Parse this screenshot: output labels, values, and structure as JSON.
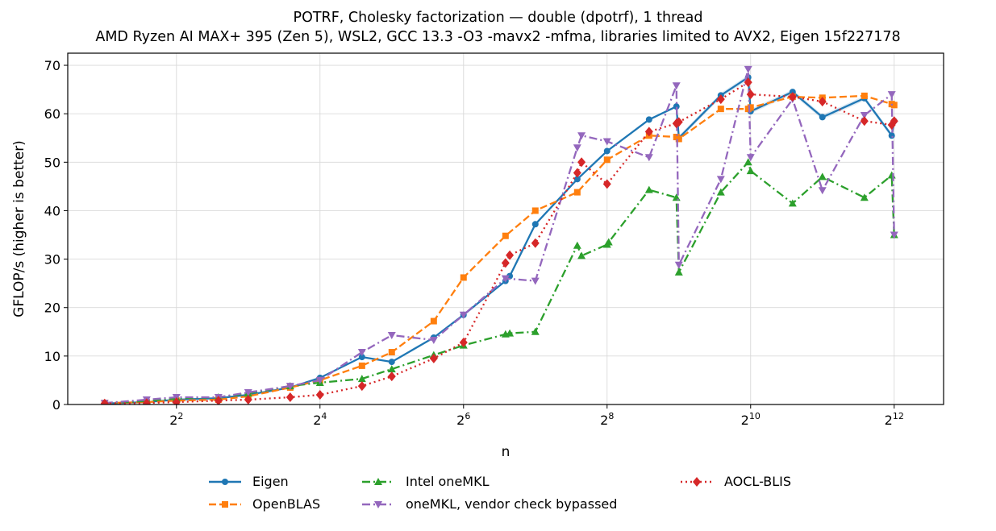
{
  "title": "POTRF, Cholesky factorization — double (dpotrf), 1 thread",
  "subtitle": "AMD Ryzen AI MAX+ 395 (Zen 5), WSL2, GCC 13.3 -O3 -mavx2 -mfma, libraries limited to AVX2, Eigen 15f227178",
  "chart_data": {
    "type": "line",
    "title": "POTRF, Cholesky factorization — double (dpotrf), 1 thread",
    "subtitle": "AMD Ryzen AI MAX+ 395 (Zen 5), WSL2, GCC 13.3 -O3 -mavx2 -mfma, libraries limited to AVX2, Eigen 15f227178",
    "xlabel": "n",
    "ylabel": "GFLOP/s (higher is better)",
    "xscale": "log2",
    "xlim": [
      1.4,
      6600
    ],
    "ylim": [
      0,
      72.5
    ],
    "x_ticks": [
      {
        "value": 4,
        "base": "2",
        "exp": "2"
      },
      {
        "value": 16,
        "base": "2",
        "exp": "4"
      },
      {
        "value": 64,
        "base": "2",
        "exp": "6"
      },
      {
        "value": 256,
        "base": "2",
        "exp": "8"
      },
      {
        "value": 1024,
        "base": "2",
        "exp": "10"
      },
      {
        "value": 4096,
        "base": "2",
        "exp": "12"
      }
    ],
    "y_ticks": [
      "0",
      "10",
      "20",
      "30",
      "40",
      "50",
      "60",
      "70"
    ],
    "grid": true,
    "legend_position": "below",
    "series": [
      {
        "name": "Eigen",
        "color": "#1f77b4",
        "style": "solid",
        "marker": "circle",
        "x": [
          2,
          3,
          4,
          6,
          8,
          12,
          16,
          24,
          32,
          48,
          64,
          96,
          100,
          128,
          192,
          256,
          384,
          500,
          512,
          768,
          1000,
          1024,
          1536,
          2048,
          3072,
          4000,
          4096
        ],
        "y": [
          0.2,
          0.5,
          1.0,
          1.3,
          2.0,
          3.5,
          5.5,
          9.8,
          8.8,
          13.8,
          18.5,
          25.5,
          26.5,
          37.2,
          46.5,
          52.3,
          58.8,
          61.5,
          55.0,
          63.8,
          67.5,
          60.5,
          64.5,
          59.3,
          63.2,
          55.5,
          58.5
        ]
      },
      {
        "name": "OpenBLAS",
        "color": "#ff7f0e",
        "style": "dashed",
        "marker": "square",
        "x": [
          2,
          3,
          4,
          6,
          8,
          12,
          16,
          24,
          32,
          48,
          64,
          96,
          128,
          192,
          256,
          384,
          500,
          512,
          768,
          1000,
          1024,
          1536,
          2048,
          3072,
          4000,
          4096
        ],
        "y": [
          0.3,
          0.5,
          0.8,
          1.0,
          1.7,
          3.5,
          5.0,
          8.0,
          10.8,
          17.2,
          26.2,
          34.8,
          40.0,
          43.8,
          50.5,
          55.5,
          55.2,
          54.8,
          61.0,
          61.0,
          61.3,
          63.5,
          63.3,
          63.7,
          62.0,
          61.8
        ]
      },
      {
        "name": "Intel oneMKL",
        "color": "#2ca02c",
        "style": "dashdot",
        "marker": "triangle-up",
        "x": [
          2,
          3,
          4,
          6,
          8,
          12,
          16,
          24,
          32,
          48,
          64,
          96,
          100,
          128,
          192,
          200,
          256,
          260,
          384,
          500,
          512,
          768,
          1000,
          1024,
          1536,
          2048,
          3072,
          4000,
          4096
        ],
        "y": [
          0.3,
          0.7,
          1.3,
          1.5,
          2.3,
          3.8,
          4.5,
          5.3,
          7.3,
          10.2,
          12.2,
          14.5,
          14.7,
          15.0,
          32.8,
          30.7,
          33.0,
          33.5,
          44.3,
          42.7,
          27.3,
          43.8,
          50.0,
          48.2,
          41.5,
          47.0,
          42.7,
          47.3,
          35.0
        ]
      },
      {
        "name": "oneMKL, vendor check bypassed",
        "color": "#9467bd",
        "style": "dashdot",
        "marker": "triangle-down",
        "x": [
          2,
          3,
          4,
          6,
          8,
          12,
          16,
          24,
          32,
          48,
          64,
          96,
          128,
          192,
          200,
          256,
          384,
          500,
          512,
          768,
          1000,
          1024,
          1536,
          2048,
          3072,
          4000,
          4096
        ],
        "y": [
          0.3,
          1.0,
          1.5,
          1.5,
          2.5,
          3.8,
          5.0,
          10.8,
          14.3,
          13.3,
          18.5,
          26.0,
          25.5,
          53.0,
          55.5,
          54.3,
          51.0,
          65.8,
          28.8,
          46.5,
          69.2,
          51.0,
          63.0,
          44.2,
          59.7,
          64.0,
          35.0
        ]
      },
      {
        "name": "AOCL-BLIS",
        "color": "#d62728",
        "style": "dotted",
        "marker": "diamond",
        "x": [
          2,
          3,
          4,
          6,
          8,
          12,
          16,
          24,
          32,
          48,
          64,
          96,
          100,
          128,
          192,
          200,
          256,
          384,
          500,
          512,
          768,
          1000,
          1024,
          1536,
          2048,
          3072,
          4000,
          4096
        ],
        "y": [
          0.2,
          0.3,
          0.5,
          0.8,
          1.0,
          1.5,
          2.0,
          3.8,
          5.8,
          9.5,
          12.8,
          29.2,
          30.8,
          33.3,
          47.8,
          50.0,
          45.5,
          56.3,
          58.0,
          58.3,
          63.0,
          66.5,
          64.0,
          63.5,
          62.5,
          58.5,
          57.7,
          58.5
        ]
      }
    ]
  }
}
